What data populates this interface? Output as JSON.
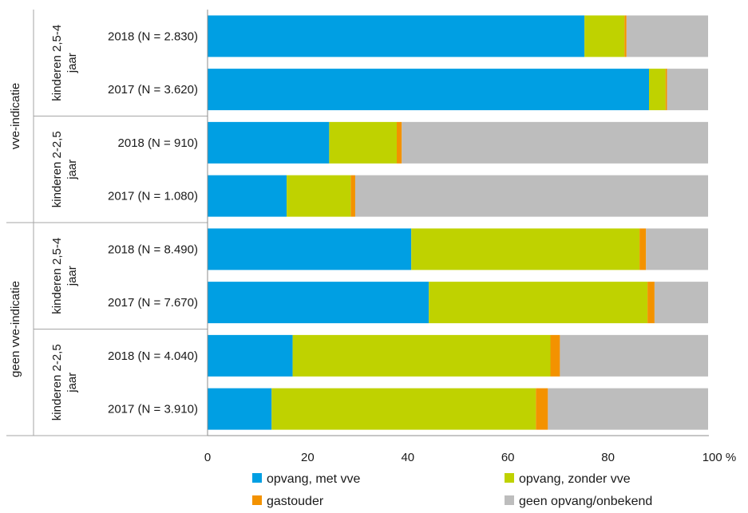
{
  "chart_data": {
    "type": "bar",
    "orientation": "horizontal",
    "stacked": true,
    "xlim": [
      0,
      100
    ],
    "x_ticks": [
      0,
      20,
      40,
      60,
      80,
      100
    ],
    "x_tick_labels": [
      "0",
      "20",
      "40",
      "60",
      "80",
      "100 %"
    ],
    "grid": false,
    "legend_placement": "bottom",
    "groups": [
      {
        "label": "vve-indicatie",
        "subgroups": [
          {
            "label_lines": [
              "kinderen 2,5-4",
              "jaar"
            ],
            "rows": [
              0,
              1
            ]
          },
          {
            "label_lines": [
              "kinderen 2-2,5",
              "jaar"
            ],
            "rows": [
              2,
              3
            ]
          }
        ]
      },
      {
        "label": "geen vve-indicatie",
        "subgroups": [
          {
            "label_lines": [
              "kinderen 2,5-4",
              "jaar"
            ],
            "rows": [
              4,
              5
            ]
          },
          {
            "label_lines": [
              "kinderen 2-2,5",
              "jaar"
            ],
            "rows": [
              6,
              7
            ]
          }
        ]
      }
    ],
    "categories": [
      "2018 (N = 2.830)",
      "2017 (N = 3.620)",
      "2018 (N = 910)",
      "2017 (N = 1.080)",
      "2018 (N = 8.490)",
      "2017 (N = 7.670)",
      "2018 (N = 4.040)",
      "2017 (N = 3.910)"
    ],
    "series": [
      {
        "name": "opvang, met vve",
        "color": "#009fe3",
        "values": [
          75.3,
          88.2,
          24.3,
          15.8,
          40.7,
          44.2,
          17.0,
          12.8
        ]
      },
      {
        "name": "opvang, zonder vve",
        "color": "#bfd200",
        "values": [
          8.0,
          3.3,
          13.5,
          12.8,
          45.6,
          43.7,
          51.5,
          52.8
        ]
      },
      {
        "name": "gastouder",
        "color": "#f39200",
        "values": [
          0.4,
          0.3,
          1.0,
          0.9,
          1.3,
          1.4,
          1.9,
          2.4
        ]
      },
      {
        "name": "geen opvang/onbekend",
        "color": "#bdbdbd",
        "values": [
          16.3,
          8.2,
          61.2,
          70.5,
          12.4,
          10.7,
          29.6,
          32.0
        ]
      }
    ]
  }
}
